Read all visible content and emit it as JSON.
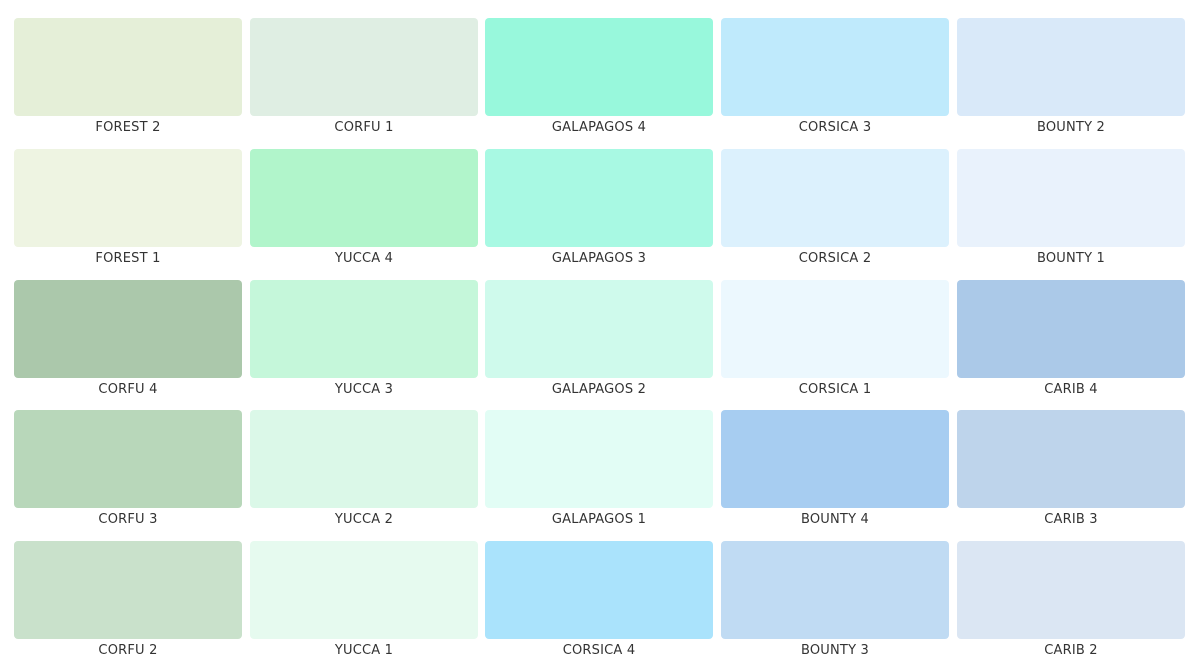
{
  "swatches": [
    {
      "label": "FOREST 2",
      "color": "#e5efd8"
    },
    {
      "label": "CORFU 1",
      "color": "#dfeee3"
    },
    {
      "label": "GALAPAGOS 4",
      "color": "#98f8dc"
    },
    {
      "label": "CORSICA 3",
      "color": "#bfeafc"
    },
    {
      "label": "BOUNTY 2",
      "color": "#d9e9f9"
    },
    {
      "label": "FOREST 1",
      "color": "#eef4e2"
    },
    {
      "label": "YUCCA 4",
      "color": "#b1f5cb"
    },
    {
      "label": "GALAPAGOS 3",
      "color": "#a8f9e3"
    },
    {
      "label": "CORSICA 2",
      "color": "#dcf1fd"
    },
    {
      "label": "BOUNTY 1",
      "color": "#e9f2fc"
    },
    {
      "label": "CORFU 4",
      "color": "#abc8ab"
    },
    {
      "label": "YUCCA 3",
      "color": "#c5f7da"
    },
    {
      "label": "GALAPAGOS 2",
      "color": "#cffaec"
    },
    {
      "label": "CORSICA 1",
      "color": "#ecf8fe"
    },
    {
      "label": "CARIB 4",
      "color": "#abc9e8"
    },
    {
      "label": "CORFU 3",
      "color": "#b8d7ba"
    },
    {
      "label": "YUCCA 2",
      "color": "#dbf8e8"
    },
    {
      "label": "GALAPAGOS 1",
      "color": "#e2fdf5"
    },
    {
      "label": "BOUNTY 4",
      "color": "#a7cdf1"
    },
    {
      "label": "CARIB 3",
      "color": "#bed4eb"
    },
    {
      "label": "CORFU 2",
      "color": "#c9e1cb"
    },
    {
      "label": "YUCCA 1",
      "color": "#e6faef"
    },
    {
      "label": "CORSICA 4",
      "color": "#aae3fc"
    },
    {
      "label": "BOUNTY 3",
      "color": "#c0dbf3"
    },
    {
      "label": "CARIB 2",
      "color": "#dbe6f3"
    }
  ]
}
